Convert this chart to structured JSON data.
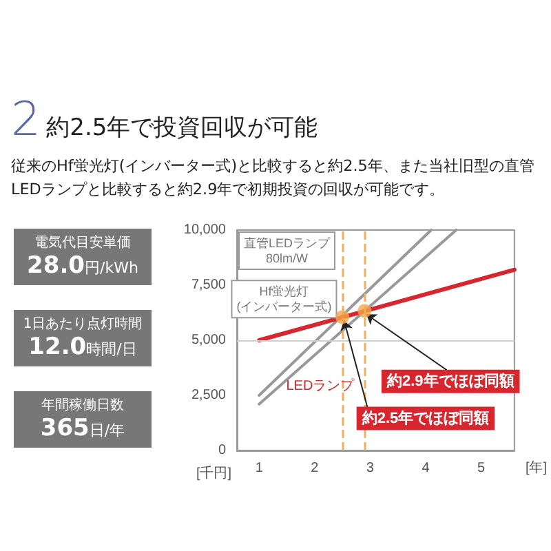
{
  "chart_data": [
    {
      "type": "line",
      "title": "2約2.5年で投資回収が可能",
      "subtitle": "従来のHf蛍光灯(インバーター式)と比較すると約2.5年、また当社旧型の直管LEDランプと比較すると約2.9年で初期投資の回収が可能です。",
      "xlabel": "[年]",
      "ylabel": "[千円]",
      "xlim": [
        0.6,
        5.6
      ],
      "xticks": [
        1,
        2,
        3,
        4,
        5
      ],
      "ylim": [
        0,
        10000
      ],
      "yticks": [
        {
          "value": 0,
          "label": "0"
        },
        {
          "value": 2500,
          "label": "2,500"
        },
        {
          "value": 5000,
          "label": "5,000"
        },
        {
          "value": 7500,
          "label": "7,500"
        },
        {
          "value": 10000,
          "label": "10,000"
        }
      ],
      "grid": false,
      "legend": false,
      "marker": "none",
      "line_style": "solid",
      "series": [
        {
          "name": "直管LEDランプ\n80lm/W",
          "color": "#999999",
          "x": [
            1,
            4.55
          ],
          "values": [
            2100,
            10000
          ]
        },
        {
          "name": "Hf蛍光灯\n(インバーター式)",
          "color": "#999999",
          "x": [
            1,
            4.1
          ],
          "values": [
            2500,
            10000
          ]
        },
        {
          "name": "LEDランプ",
          "color": "#d7262e",
          "x": [
            1,
            5.6
          ],
          "values": [
            5000,
            8200
          ]
        },
        {
          "type": "scatter",
          "marker": "circle",
          "color": "#f5a84a",
          "x": [
            2.5,
            2.9
          ],
          "values": [
            6050,
            6330
          ]
        }
      ],
      "ref_lines": [
        {
          "axis": "x",
          "value": 2.5,
          "color": "#f0b060",
          "line_style": "dashed"
        },
        {
          "axis": "x",
          "value": 2.9,
          "color": "#f0b060",
          "line_style": "dashed"
        },
        {
          "axis": "y",
          "value": 5000,
          "color": "#d0d0d0",
          "line_style": "solid"
        }
      ],
      "annotations": [
        {
          "text": "約2.9年でほぼ同額",
          "x": 2.9,
          "y": 6330
        },
        {
          "text": "約2.5年でほぼ同額",
          "x": 2.5,
          "y": 6050
        }
      ]
    },
    {
      "type": "other",
      "annotations": [
        "電気代目安単価",
        "28.0円/kWh",
        "1日あたり点灯時間",
        "12.0時間/日",
        "年間稼働日数",
        "365日/年"
      ]
    }
  ]
}
